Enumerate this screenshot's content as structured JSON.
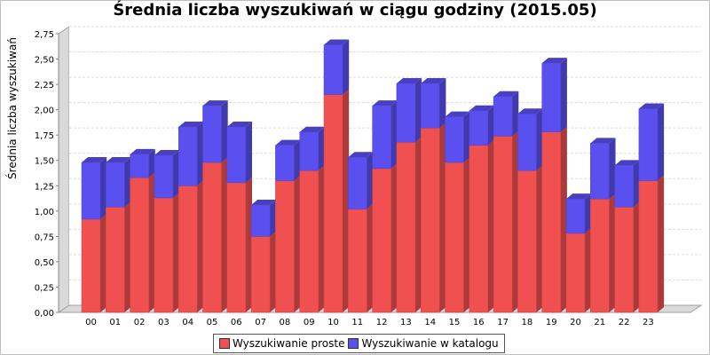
{
  "chart_data": {
    "type": "bar",
    "stacked": true,
    "title": "Średnia liczba wyszukiwań w ciągu godziny (2015.05)",
    "xlabel": "",
    "ylabel": "Średnia liczba wyszukiwań",
    "ylim": [
      0,
      2.75
    ],
    "yticks": [
      "0,00",
      "0,25",
      "0,50",
      "0,75",
      "1,00",
      "1,25",
      "1,50",
      "1,75",
      "2,00",
      "2,25",
      "2,50",
      "2,75"
    ],
    "grid": true,
    "legend_position": "bottom",
    "categories": [
      "00",
      "01",
      "02",
      "03",
      "04",
      "05",
      "06",
      "07",
      "08",
      "09",
      "10",
      "11",
      "12",
      "13",
      "14",
      "15",
      "16",
      "17",
      "18",
      "19",
      "20",
      "21",
      "22",
      "23"
    ],
    "series": [
      {
        "name": "Wyszukiwanie proste",
        "color": "#f05050",
        "values": [
          0.92,
          1.04,
          1.33,
          1.13,
          1.25,
          1.48,
          1.28,
          0.75,
          1.3,
          1.4,
          2.15,
          1.02,
          1.42,
          1.68,
          1.82,
          1.48,
          1.65,
          1.74,
          1.4,
          1.78,
          0.78,
          1.12,
          1.04,
          1.3
        ]
      },
      {
        "name": "Wyszukiwanie w katalogu",
        "color": "#5a50f0",
        "values": [
          0.56,
          0.44,
          0.23,
          0.42,
          0.58,
          0.56,
          0.55,
          0.31,
          0.35,
          0.38,
          0.49,
          0.51,
          0.62,
          0.58,
          0.44,
          0.45,
          0.34,
          0.39,
          0.56,
          0.68,
          0.34,
          0.55,
          0.41,
          0.71
        ]
      }
    ]
  }
}
